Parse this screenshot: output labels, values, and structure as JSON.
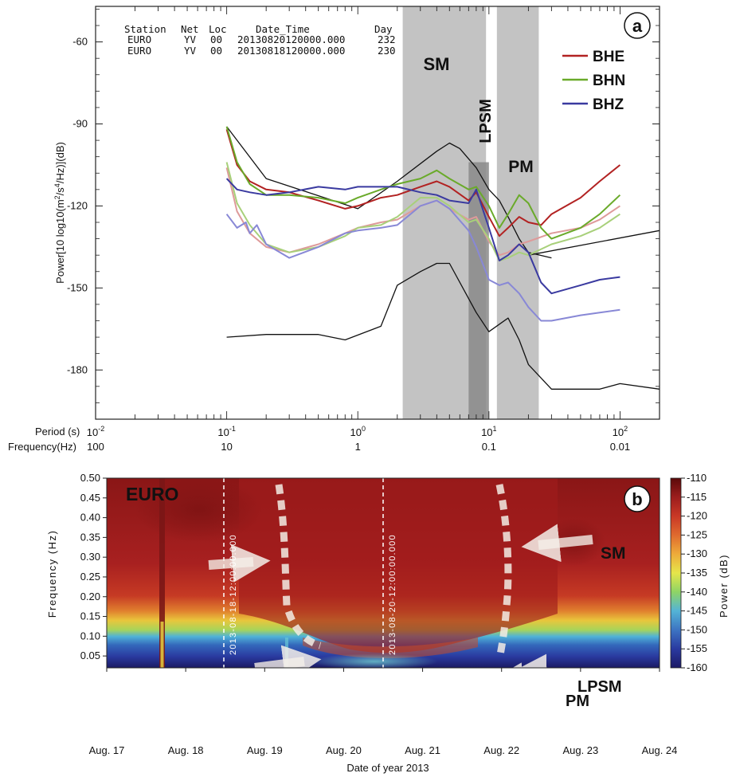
{
  "chart_data": [
    {
      "panel": "a",
      "type": "line",
      "scale": {
        "x": "log",
        "y": "linear"
      },
      "xlim": [
        0.01,
        200
      ],
      "ylim": [
        -198,
        -47
      ],
      "x_ticks_period": [
        {
          "base": "10",
          "exp": "-2",
          "v": 0.01
        },
        {
          "base": "10",
          "exp": "-1",
          "v": 0.1
        },
        {
          "base": "10",
          "exp": "0",
          "v": 1
        },
        {
          "base": "10",
          "exp": "1",
          "v": 10
        },
        {
          "base": "10",
          "exp": "2",
          "v": 100
        }
      ],
      "x_ticks_freq": [
        {
          "label": "100",
          "v": 0.01
        },
        {
          "label": "10",
          "v": 0.1
        },
        {
          "label": "1",
          "v": 1
        },
        {
          "label": "0.1",
          "v": 10
        },
        {
          "label": "0.01",
          "v": 100
        }
      ],
      "x_label_period": "Period (s)",
      "x_label_freq": "Frequency(Hz)",
      "y_ticks": [
        -60,
        -90,
        -120,
        -150,
        -180
      ],
      "ylabel": {
        "pre": "Power[10 log10(m",
        "sup1": "2",
        "mid": "/s",
        "sup2": "4",
        "post": "/Hz)](dB)"
      },
      "panel_label": "a",
      "header": {
        "cols": [
          "Station",
          "Net",
          "Loc",
          "Date_Time",
          "Day"
        ],
        "rows": [
          [
            "EURO",
            "YV",
            "00",
            "20130820120000.000",
            "232"
          ],
          [
            "EURO",
            "YV",
            "00",
            "20130818120000.000",
            "230"
          ]
        ]
      },
      "legend": {
        "position": "top-right"
      },
      "bands": [
        {
          "label": "SM",
          "from": 2.2,
          "to": 9.5
        },
        {
          "label": "LPSM",
          "from": 7.0,
          "to": 10.0
        },
        {
          "label": "PM",
          "from": 11.5,
          "to": 24.0
        }
      ],
      "series": [
        {
          "name": "BHE",
          "color": "#b22222",
          "width": 2,
          "x": [
            0.1,
            0.12,
            0.15,
            0.2,
            0.3,
            0.5,
            0.8,
            1,
            1.5,
            2,
            3,
            4,
            5,
            7,
            8,
            10,
            12,
            14,
            17,
            20,
            25,
            30,
            50,
            70,
            100
          ],
          "y": [
            -92,
            -105,
            -111,
            -114,
            -115,
            -118,
            -121,
            -120,
            -117,
            -116,
            -113,
            -111,
            -113,
            -118,
            -115,
            -124,
            -131,
            -128,
            -124,
            -126,
            -127,
            -123,
            -117,
            -111,
            -105
          ]
        },
        {
          "name": "BHN",
          "color": "#6aaa2a",
          "width": 2,
          "x": [
            0.1,
            0.12,
            0.15,
            0.2,
            0.3,
            0.5,
            0.8,
            1,
            1.5,
            2,
            3,
            4,
            5,
            7,
            8,
            10,
            12,
            14,
            17,
            20,
            25,
            30,
            50,
            70,
            100
          ],
          "y": [
            -91,
            -104,
            -112,
            -116,
            -116,
            -117,
            -119,
            -117,
            -114,
            -112,
            -110,
            -107,
            -110,
            -114,
            -113,
            -120,
            -128,
            -123,
            -116,
            -119,
            -128,
            -132,
            -128,
            -123,
            -116
          ]
        },
        {
          "name": "BHZ",
          "color": "#3a3aa0",
          "width": 2,
          "x": [
            0.1,
            0.12,
            0.15,
            0.2,
            0.3,
            0.5,
            0.8,
            1,
            1.5,
            2,
            3,
            4,
            5,
            7,
            8,
            10,
            12,
            14,
            17,
            20,
            25,
            30,
            50,
            70,
            100
          ],
          "y": [
            -110,
            -114,
            -115,
            -116,
            -115,
            -113,
            -114,
            -113,
            -113,
            -113,
            -115,
            -116,
            -118,
            -119,
            -114,
            -128,
            -140,
            -138,
            -134,
            -137,
            -148,
            -152,
            -149,
            -147,
            -146
          ]
        },
        {
          "name": "",
          "color": "#de9a9a",
          "width": 2,
          "x": [
            0.1,
            0.12,
            0.15,
            0.2,
            0.3,
            0.5,
            0.8,
            1,
            1.5,
            2,
            3,
            4,
            5,
            7,
            8,
            10,
            12,
            14,
            17,
            20,
            30,
            50,
            70,
            100
          ],
          "y": [
            -106,
            -122,
            -130,
            -135,
            -137,
            -134,
            -130,
            -128,
            -126,
            -125,
            -120,
            -118,
            -121,
            -125,
            -124,
            -133,
            -138,
            -137,
            -134,
            -133,
            -130,
            -128,
            -125,
            -120
          ]
        },
        {
          "name": "",
          "color": "#a8d07a",
          "width": 2,
          "x": [
            0.1,
            0.12,
            0.15,
            0.2,
            0.3,
            0.5,
            0.8,
            1,
            1.5,
            2,
            3,
            4,
            5,
            7,
            8,
            10,
            12,
            14,
            17,
            20,
            30,
            50,
            70,
            100
          ],
          "y": [
            -104,
            -119,
            -127,
            -134,
            -137,
            -135,
            -131,
            -128,
            -127,
            -124,
            -117,
            -117,
            -120,
            -126,
            -125,
            -132,
            -140,
            -139,
            -137,
            -138,
            -134,
            -131,
            -128,
            -123
          ]
        },
        {
          "name": "",
          "color": "#8888d6",
          "width": 2,
          "x": [
            0.1,
            0.12,
            0.14,
            0.15,
            0.17,
            0.2,
            0.3,
            0.5,
            0.8,
            1,
            1.5,
            2,
            3,
            4,
            5,
            7,
            8,
            10,
            12,
            14,
            17,
            20,
            25,
            30,
            50,
            70,
            100
          ],
          "y": [
            -123,
            -128,
            -126,
            -130,
            -127,
            -134,
            -139,
            -135,
            -130,
            -129,
            -128,
            -127,
            -120,
            -118,
            -121,
            -129,
            -135,
            -147,
            -149,
            -148,
            -152,
            -157,
            -162,
            -162,
            -160,
            -159,
            -158
          ]
        },
        {
          "name": "",
          "color": "#111111",
          "width": 1.3,
          "x": [
            0.1,
            0.2,
            1,
            2,
            4,
            5,
            6,
            8,
            10,
            12,
            14,
            17,
            20,
            30
          ],
          "y": [
            -91,
            -110,
            -121,
            -111,
            -100,
            -97,
            -99,
            -106,
            -114,
            -118,
            -124,
            -132,
            -137,
            -139
          ]
        },
        {
          "name": "",
          "color": "#111111",
          "width": 1.3,
          "x": [
            0.1,
            0.2,
            0.5,
            0.8,
            1.5,
            2,
            3,
            4,
            5,
            8,
            10,
            14,
            17,
            20,
            30,
            50,
            70,
            100,
            200
          ],
          "y": [
            -168,
            -167,
            -167,
            -169,
            -164,
            -149,
            -144,
            -141,
            -141,
            -159,
            -166,
            -161,
            -169,
            -178,
            -187,
            -187,
            -187,
            -185,
            -187
          ]
        },
        {
          "name": "",
          "color": "#111111",
          "width": 1.3,
          "x": [
            20,
            200
          ],
          "y": [
            -138,
            -129
          ]
        }
      ]
    },
    {
      "panel": "b",
      "type": "heatmap",
      "title": "EURO",
      "panel_label": "b",
      "xlabel": "Date of year 2013",
      "ylabel": "Frequency (Hz)",
      "x_ticks": [
        "Aug. 17",
        "Aug. 18",
        "Aug. 19",
        "Aug. 20",
        "Aug. 21",
        "Aug. 22",
        "Aug. 23",
        "Aug. 24"
      ],
      "xlim_days": [
        17,
        24
      ],
      "y_ticks": [
        "0.05",
        "0.10",
        "0.15",
        "0.20",
        "0.25",
        "0.30",
        "0.35",
        "0.40",
        "0.45",
        "0.50"
      ],
      "ylim": [
        0.02,
        0.5
      ],
      "colorbar": {
        "label": "Power (dB)",
        "ticks": [
          "-110",
          "-115",
          "-120",
          "-125",
          "-130",
          "-135",
          "-140",
          "-145",
          "-150",
          "-155",
          "-160"
        ],
        "range": [
          -160,
          -110
        ],
        "colors": [
          "#5b0a0a",
          "#9c1d1d",
          "#c93826",
          "#df6a2e",
          "#eeab3a",
          "#e6e64a",
          "#8ed465",
          "#54b4d6",
          "#3d74c2",
          "#2a3aa0",
          "#1c1a66"
        ]
      },
      "markers": [
        {
          "label": "2013-08-18-12:00:00.000",
          "day": 18.5
        },
        {
          "label": "2013-08-20-12:00:00.000",
          "day": 20.5
        }
      ],
      "annotations": [
        "SM",
        "LPSM",
        "PM"
      ]
    }
  ]
}
